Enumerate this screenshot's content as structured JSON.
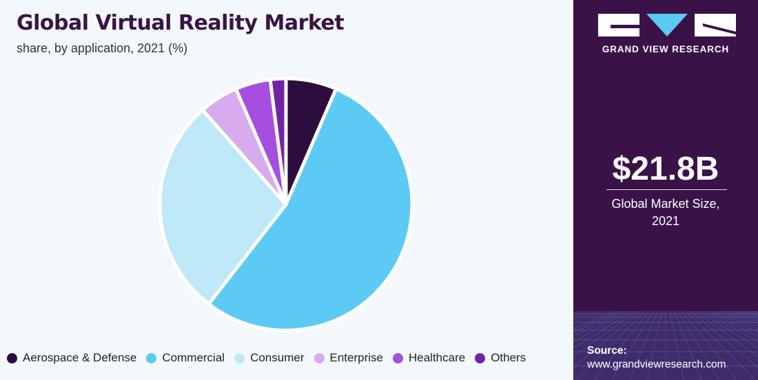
{
  "title": "Global Virtual Reality Market",
  "subtitle": "share, by application, 2021 (%)",
  "brand": {
    "name": "GRAND VIEW RESEARCH",
    "logo_icon": "gvr-logo-icon"
  },
  "highlight": {
    "value": "$21.8B",
    "label_line1": "Global Market Size,",
    "label_line2": "2021"
  },
  "source": {
    "label": "Source:",
    "url": "www.grandviewresearch.com"
  },
  "colors": {
    "left_bg": "#f3f8fc",
    "right_bg": "#3a1248",
    "title": "#3a1345"
  },
  "chart_data": {
    "type": "pie",
    "title": "Global Virtual Reality Market",
    "subtitle": "share, by application, 2021 (%)",
    "legend_position": "bottom",
    "slices": [
      {
        "name": "Aerospace & Defense",
        "value": 6.5,
        "color": "#2d0d3d"
      },
      {
        "name": "Commercial",
        "value": 54.0,
        "color": "#5bcbf5"
      },
      {
        "name": "Consumer",
        "value": 28.0,
        "color": "#bfe8f9"
      },
      {
        "name": "Enterprise",
        "value": 5.0,
        "color": "#d8aaee"
      },
      {
        "name": "Healthcare",
        "value": 4.5,
        "color": "#a64ee0"
      },
      {
        "name": "Others",
        "value": 2.0,
        "color": "#7125a5"
      }
    ]
  }
}
